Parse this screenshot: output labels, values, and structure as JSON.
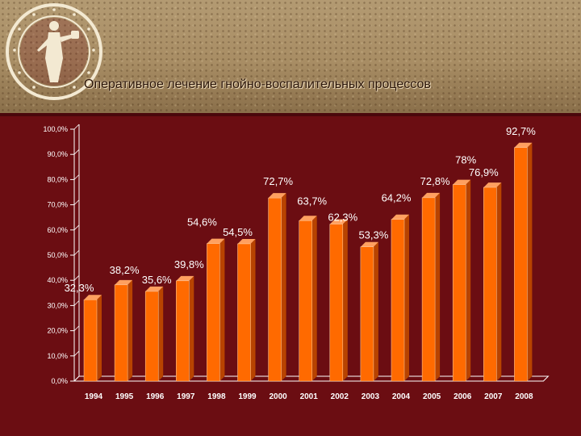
{
  "slide": {
    "title": "Оперативное лечение гнойно-воспалительных процессов"
  },
  "colors": {
    "background": "#6b0d12",
    "bar_front": "#ff6a00",
    "bar_side": "#b84300",
    "bar_top": "#ffa060",
    "text": "#ffffff"
  },
  "chart_data": {
    "type": "bar",
    "categories": [
      "1994",
      "1995",
      "1996",
      "1997",
      "1998",
      "1999",
      "2000",
      "2001",
      "2002",
      "2003",
      "2004",
      "2005",
      "2006",
      "2007",
      "2008"
    ],
    "values": [
      32.3,
      38.2,
      35.6,
      39.8,
      54.6,
      54.5,
      72.7,
      63.7,
      62.3,
      53.3,
      64.2,
      72.8,
      78,
      76.9,
      92.7
    ],
    "data_labels": [
      "32,3%",
      "38,2%",
      "35,6%",
      "39,8%",
      "54,6%",
      "54,5%",
      "72,7%",
      "63,7%",
      "62,3%",
      "53,3%",
      "64,2%",
      "72,8%",
      "78%",
      "76,9%",
      "92,7%"
    ],
    "y_ticks": [
      0,
      10,
      20,
      30,
      40,
      50,
      60,
      70,
      80,
      90,
      100
    ],
    "y_tick_labels": [
      "0,0%",
      "10,0%",
      "20,0%",
      "30,0%",
      "40,0%",
      "50,0%",
      "60,0%",
      "70,0%",
      "80,0%",
      "90,0%",
      "100,0%"
    ],
    "ylim": [
      0,
      100
    ],
    "grid": false,
    "legend": "none"
  }
}
